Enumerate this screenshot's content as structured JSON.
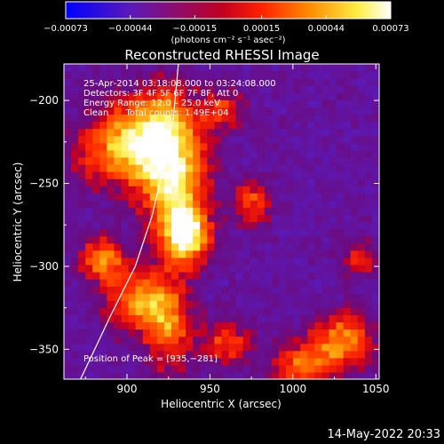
{
  "chart_data": {
    "type": "heatmap",
    "title": "Reconstructed RHESSI Image",
    "xlabel": "Heliocentric X (arcsec)",
    "ylabel": "Heliocentric Y (arcsec)",
    "xlim": [
      862,
      1052
    ],
    "ylim": [
      -368,
      -178
    ],
    "x_ticks": [
      900,
      950,
      1000,
      1050
    ],
    "x_tick_labels": [
      "900",
      "950",
      "1000",
      "1050"
    ],
    "y_ticks": [
      -200,
      -250,
      -300,
      -350
    ],
    "y_tick_labels": [
      "−200",
      "−250",
      "−300",
      "−350"
    ],
    "colorbar": {
      "min": -0.00073,
      "max": 0.00073,
      "tick_values": [
        -0.00073,
        -0.00044,
        -0.00015,
        0.00015,
        0.00044,
        0.00073
      ],
      "tick_labels": [
        "−0.00073",
        "−0.00044",
        "−0.00015",
        "0.00015",
        "0.00044",
        "0.00073"
      ],
      "unit_label": "(photons cm⁻² s⁻¹ asec⁻²)",
      "colors": [
        "#0000ff",
        "#5a1ab8",
        "#ff0000",
        "#ff8c00",
        "#ffff66",
        "#ffffff"
      ]
    },
    "info_lines": [
      "25‑Apr‑2014 03:18:08.000 to 03:24:08.000",
      "Detectors: 3F 4F 5F 6F 7F 8F, Att 0",
      "Energy Range: 12.0 – 25.0 keV",
      "Clean      Total counts: 1.49E+04"
    ],
    "peak_label": "Position of Peak = [935,−281]",
    "peak": {
      "x": 935,
      "y": -281
    },
    "limb_curve": [
      [
        872,
        -368
      ],
      [
        890,
        -330
      ],
      [
        905,
        -300
      ],
      [
        915,
        -270
      ],
      [
        922,
        -240
      ],
      [
        928,
        -210
      ],
      [
        931,
        -178
      ]
    ],
    "emission_sources": [
      {
        "x": 935,
        "y": -281,
        "amp": 0.00073,
        "sx": 10,
        "sy": 12
      },
      {
        "x": 928,
        "y": -250,
        "amp": 0.0005,
        "sx": 14,
        "sy": 20
      },
      {
        "x": 920,
        "y": -215,
        "amp": 0.0004,
        "sx": 18,
        "sy": 18
      },
      {
        "x": 895,
        "y": -230,
        "amp": 0.0003,
        "sx": 20,
        "sy": 16
      },
      {
        "x": 885,
        "y": -295,
        "amp": 0.00038,
        "sx": 9,
        "sy": 9
      },
      {
        "x": 905,
        "y": -320,
        "amp": 0.0003,
        "sx": 14,
        "sy": 14
      },
      {
        "x": 925,
        "y": -335,
        "amp": 0.00032,
        "sx": 10,
        "sy": 20
      },
      {
        "x": 1030,
        "y": -345,
        "amp": 0.0004,
        "sx": 13,
        "sy": 12
      },
      {
        "x": 1005,
        "y": -360,
        "amp": 0.0003,
        "sx": 12,
        "sy": 10
      },
      {
        "x": 960,
        "y": -345,
        "amp": 0.0002,
        "sx": 10,
        "sy": 10
      },
      {
        "x": 975,
        "y": -262,
        "amp": 0.0002,
        "sx": 8,
        "sy": 10
      },
      {
        "x": 958,
        "y": -205,
        "amp": 0.00015,
        "sx": 8,
        "sy": 8
      },
      {
        "x": 1040,
        "y": -295,
        "amp": 0.00012,
        "sx": 8,
        "sy": 8
      }
    ]
  },
  "footer": {
    "timestamp": "14‑May‑2022 20:33"
  }
}
